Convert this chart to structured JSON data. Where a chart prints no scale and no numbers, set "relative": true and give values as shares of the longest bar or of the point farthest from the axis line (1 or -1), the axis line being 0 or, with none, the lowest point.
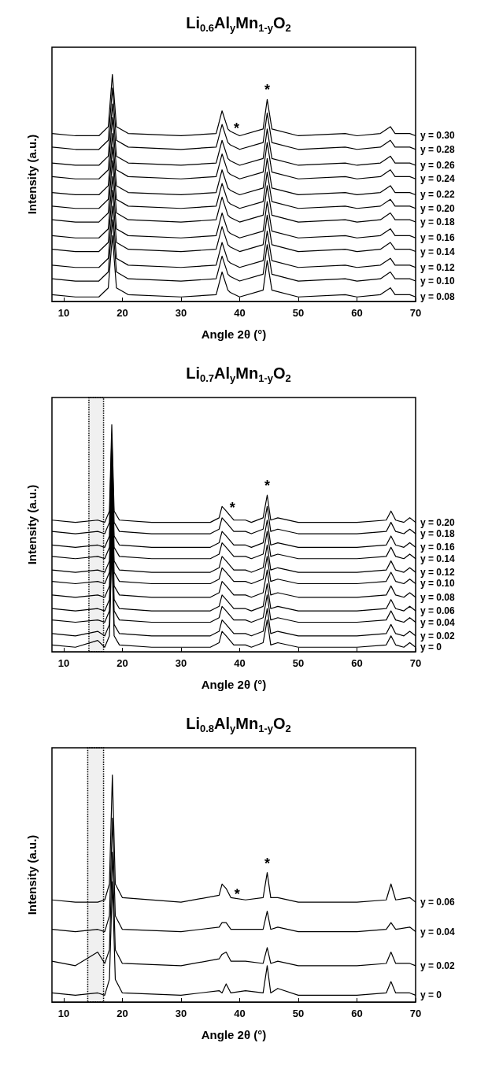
{
  "chart_data": [
    {
      "type": "line",
      "title": "Li$_{0.6}$Al$_{y}$Mn$_{1-y}$O$_{2}$",
      "xlabel": "Angle 2θ (°)",
      "ylabel": "Intensity (a.u.)",
      "relative": true,
      "marker": "none",
      "xlim": [
        8,
        70
      ],
      "xticks": [
        10,
        20,
        30,
        40,
        50,
        60,
        70
      ],
      "x": [
        8,
        12,
        16,
        17.6,
        18.3,
        19,
        21,
        30,
        36,
        37,
        38,
        38.4,
        40,
        44,
        44.7,
        45.5,
        50,
        58,
        60,
        64,
        65.7,
        66.5,
        69,
        70
      ],
      "annotations": [
        {
          "text": "*",
          "x": 44.7,
          "y": 0.89
        },
        {
          "text": "*",
          "x": 38.4,
          "y": 0.75
        }
      ],
      "series": [
        {
          "name": "y = 0.08",
          "color": "#000000",
          "values": [
            0.03,
            0.02,
            0.02,
            0.06,
            0.29,
            0.06,
            0.03,
            0.02,
            0.03,
            0.13,
            0.05,
            0.04,
            0.02,
            0.05,
            0.18,
            0.05,
            0.02,
            0.03,
            0.02,
            0.03,
            0.06,
            0.03,
            0.03,
            0.02
          ]
        },
        {
          "name": "y = 0.10",
          "color": "#000000",
          "values": [
            0.1,
            0.09,
            0.09,
            0.13,
            0.36,
            0.13,
            0.1,
            0.09,
            0.1,
            0.2,
            0.12,
            0.11,
            0.09,
            0.12,
            0.25,
            0.12,
            0.09,
            0.1,
            0.09,
            0.1,
            0.13,
            0.1,
            0.1,
            0.09
          ]
        },
        {
          "name": "y = 0.12",
          "color": "#000000",
          "values": [
            0.16,
            0.15,
            0.15,
            0.19,
            0.42,
            0.19,
            0.16,
            0.15,
            0.16,
            0.26,
            0.18,
            0.17,
            0.15,
            0.18,
            0.31,
            0.18,
            0.15,
            0.16,
            0.15,
            0.16,
            0.19,
            0.16,
            0.16,
            0.15
          ]
        },
        {
          "name": "y = 0.14",
          "color": "#000000",
          "values": [
            0.23,
            0.22,
            0.22,
            0.26,
            0.49,
            0.26,
            0.23,
            0.22,
            0.23,
            0.33,
            0.25,
            0.24,
            0.22,
            0.25,
            0.38,
            0.25,
            0.22,
            0.23,
            0.22,
            0.23,
            0.26,
            0.23,
            0.23,
            0.22
          ]
        },
        {
          "name": "y = 0.16",
          "color": "#000000",
          "values": [
            0.29,
            0.28,
            0.28,
            0.32,
            0.55,
            0.32,
            0.29,
            0.28,
            0.29,
            0.39,
            0.31,
            0.3,
            0.28,
            0.31,
            0.44,
            0.31,
            0.28,
            0.29,
            0.28,
            0.29,
            0.32,
            0.29,
            0.29,
            0.28
          ]
        },
        {
          "name": "y = 0.18",
          "color": "#000000",
          "values": [
            0.36,
            0.35,
            0.35,
            0.39,
            0.62,
            0.39,
            0.36,
            0.35,
            0.36,
            0.46,
            0.38,
            0.37,
            0.35,
            0.38,
            0.51,
            0.38,
            0.35,
            0.36,
            0.35,
            0.36,
            0.39,
            0.36,
            0.36,
            0.35
          ]
        },
        {
          "name": "y = 0.20",
          "color": "#000000",
          "values": [
            0.42,
            0.41,
            0.41,
            0.45,
            0.68,
            0.45,
            0.42,
            0.41,
            0.42,
            0.52,
            0.44,
            0.43,
            0.41,
            0.44,
            0.57,
            0.44,
            0.41,
            0.42,
            0.41,
            0.42,
            0.45,
            0.42,
            0.42,
            0.41
          ]
        },
        {
          "name": "y = 0.22",
          "color": "#000000",
          "values": [
            0.48,
            0.47,
            0.47,
            0.51,
            0.74,
            0.51,
            0.48,
            0.47,
            0.48,
            0.58,
            0.5,
            0.49,
            0.47,
            0.5,
            0.63,
            0.5,
            0.47,
            0.48,
            0.47,
            0.48,
            0.51,
            0.48,
            0.48,
            0.47
          ]
        },
        {
          "name": "y = 0.24",
          "color": "#000000",
          "values": [
            0.55,
            0.54,
            0.54,
            0.58,
            0.81,
            0.58,
            0.55,
            0.54,
            0.55,
            0.65,
            0.57,
            0.56,
            0.54,
            0.57,
            0.7,
            0.57,
            0.54,
            0.55,
            0.54,
            0.55,
            0.58,
            0.55,
            0.55,
            0.54
          ]
        },
        {
          "name": "y = 0.26",
          "color": "#000000",
          "values": [
            0.61,
            0.6,
            0.6,
            0.64,
            0.87,
            0.64,
            0.61,
            0.6,
            0.61,
            0.71,
            0.63,
            0.62,
            0.6,
            0.63,
            0.76,
            0.63,
            0.6,
            0.61,
            0.6,
            0.61,
            0.64,
            0.61,
            0.61,
            0.6
          ]
        },
        {
          "name": "y = 0.28",
          "color": "#000000",
          "values": [
            0.68,
            0.67,
            0.67,
            0.71,
            0.94,
            0.71,
            0.68,
            0.67,
            0.68,
            0.78,
            0.7,
            0.69,
            0.67,
            0.7,
            0.83,
            0.7,
            0.67,
            0.68,
            0.67,
            0.68,
            0.71,
            0.68,
            0.68,
            0.67
          ]
        },
        {
          "name": "y = 0.30",
          "color": "#000000",
          "values": [
            0.74,
            0.73,
            0.73,
            0.77,
            1,
            0.77,
            0.74,
            0.73,
            0.74,
            0.84,
            0.76,
            0.75,
            0.73,
            0.76,
            0.89,
            0.76,
            0.73,
            0.74,
            0.73,
            0.74,
            0.77,
            0.74,
            0.74,
            0.73
          ]
        }
      ]
    },
    {
      "type": "line",
      "title": "Li$_{0.7}$Al$_{y}$Mn$_{1-y}$O$_{2}$",
      "xlabel": "Angle 2θ (°)",
      "ylabel": "Intensity (a.u.)",
      "relative": true,
      "marker": "none",
      "xlim": [
        8,
        70
      ],
      "xticks": [
        10,
        20,
        30,
        40,
        50,
        60,
        70
      ],
      "x": [
        8,
        12,
        15.8,
        17,
        17.8,
        18.2,
        18.6,
        19.5,
        25,
        35,
        36.5,
        37,
        37.7,
        39,
        41,
        42,
        44,
        44.7,
        45.3,
        46.5,
        50,
        60,
        65,
        65.8,
        66.6,
        68,
        69,
        70
      ],
      "annotations": [
        {
          "text": "*",
          "x": 44.7,
          "y": 0.69
        },
        {
          "text": "*",
          "x": 37.7,
          "y": 0.62
        }
      ],
      "bands": [
        {
          "axis": "x",
          "from": 14.3,
          "to": 16.8
        }
      ],
      "series": [
        {
          "name": "y = 0",
          "color": "#000000",
          "values": [
            0.03,
            0.02,
            0.05,
            0.02,
            0.07,
            0.45,
            0.07,
            0.03,
            0.02,
            0.02,
            0.04,
            0.09,
            0.07,
            0.03,
            0.03,
            0.02,
            0.04,
            0.14,
            0.03,
            0.04,
            0.02,
            0.02,
            0.03,
            0.07,
            0.03,
            0.02,
            0.04,
            0.02
          ]
        },
        {
          "name": "y = 0.02",
          "color": "#000000",
          "values": [
            0.08,
            0.07,
            0.09,
            0.07,
            0.12,
            0.5,
            0.12,
            0.08,
            0.07,
            0.07,
            0.09,
            0.14,
            0.12,
            0.08,
            0.08,
            0.07,
            0.09,
            0.19,
            0.08,
            0.09,
            0.07,
            0.07,
            0.08,
            0.12,
            0.08,
            0.07,
            0.09,
            0.07
          ]
        },
        {
          "name": "y = 0.04",
          "color": "#000000",
          "values": [
            0.14,
            0.13,
            0.14,
            0.13,
            0.18,
            0.56,
            0.18,
            0.14,
            0.13,
            0.13,
            0.15,
            0.2,
            0.18,
            0.14,
            0.14,
            0.13,
            0.15,
            0.25,
            0.14,
            0.15,
            0.13,
            0.13,
            0.14,
            0.18,
            0.14,
            0.13,
            0.15,
            0.13
          ]
        },
        {
          "name": "y = 0.06",
          "color": "#000000",
          "values": [
            0.19,
            0.18,
            0.19,
            0.18,
            0.23,
            0.61,
            0.23,
            0.19,
            0.18,
            0.18,
            0.2,
            0.25,
            0.23,
            0.19,
            0.19,
            0.18,
            0.2,
            0.3,
            0.19,
            0.2,
            0.18,
            0.18,
            0.19,
            0.23,
            0.19,
            0.18,
            0.2,
            0.18
          ]
        },
        {
          "name": "y = 0.08",
          "color": "#000000",
          "values": [
            0.25,
            0.24,
            0.25,
            0.24,
            0.29,
            0.67,
            0.29,
            0.25,
            0.24,
            0.24,
            0.26,
            0.31,
            0.29,
            0.25,
            0.25,
            0.24,
            0.26,
            0.36,
            0.25,
            0.26,
            0.24,
            0.24,
            0.25,
            0.29,
            0.25,
            0.24,
            0.26,
            0.24
          ]
        },
        {
          "name": "y = 0.10",
          "color": "#000000",
          "values": [
            0.31,
            0.3,
            0.31,
            0.3,
            0.35,
            0.73,
            0.35,
            0.31,
            0.3,
            0.3,
            0.32,
            0.37,
            0.35,
            0.31,
            0.31,
            0.3,
            0.32,
            0.42,
            0.31,
            0.32,
            0.3,
            0.3,
            0.31,
            0.35,
            0.31,
            0.3,
            0.32,
            0.3
          ]
        },
        {
          "name": "y = 0.12",
          "color": "#000000",
          "values": [
            0.36,
            0.35,
            0.36,
            0.35,
            0.4,
            0.78,
            0.4,
            0.36,
            0.35,
            0.35,
            0.37,
            0.42,
            0.4,
            0.36,
            0.36,
            0.35,
            0.37,
            0.47,
            0.36,
            0.37,
            0.35,
            0.35,
            0.36,
            0.4,
            0.36,
            0.35,
            0.37,
            0.35
          ]
        },
        {
          "name": "y = 0.14",
          "color": "#000000",
          "values": [
            0.42,
            0.41,
            0.42,
            0.41,
            0.46,
            0.84,
            0.46,
            0.42,
            0.41,
            0.41,
            0.43,
            0.48,
            0.46,
            0.42,
            0.42,
            0.41,
            0.43,
            0.53,
            0.42,
            0.43,
            0.41,
            0.41,
            0.42,
            0.46,
            0.42,
            0.41,
            0.43,
            0.41
          ]
        },
        {
          "name": "y = 0.16",
          "color": "#000000",
          "values": [
            0.47,
            0.46,
            0.47,
            0.46,
            0.51,
            0.89,
            0.51,
            0.47,
            0.46,
            0.46,
            0.48,
            0.53,
            0.51,
            0.47,
            0.47,
            0.46,
            0.48,
            0.58,
            0.47,
            0.48,
            0.46,
            0.46,
            0.47,
            0.51,
            0.47,
            0.46,
            0.48,
            0.46
          ]
        },
        {
          "name": "y = 0.18",
          "color": "#000000",
          "values": [
            0.53,
            0.52,
            0.53,
            0.52,
            0.57,
            0.95,
            0.57,
            0.53,
            0.52,
            0.52,
            0.54,
            0.59,
            0.57,
            0.53,
            0.53,
            0.52,
            0.54,
            0.64,
            0.53,
            0.54,
            0.52,
            0.52,
            0.53,
            0.57,
            0.53,
            0.52,
            0.54,
            0.52
          ]
        },
        {
          "name": "y = 0.20",
          "color": "#000000",
          "values": [
            0.58,
            0.57,
            0.58,
            0.57,
            0.62,
            1,
            0.62,
            0.58,
            0.57,
            0.57,
            0.59,
            0.64,
            0.62,
            0.58,
            0.58,
            0.57,
            0.59,
            0.69,
            0.58,
            0.59,
            0.57,
            0.57,
            0.58,
            0.62,
            0.58,
            0.57,
            0.59,
            0.57
          ]
        }
      ]
    },
    {
      "type": "line",
      "title": "Li$_{0.8}$Al$_{y}$Mn$_{1-y}$O$_{2}$",
      "xlabel": "Angle 2θ (°)",
      "ylabel": "Intensity (a.u.)",
      "relative": true,
      "marker": "none",
      "xlim": [
        8,
        70
      ],
      "xticks": [
        10,
        20,
        30,
        40,
        50,
        60,
        70
      ],
      "x": [
        8,
        12,
        15.8,
        17,
        17.8,
        18.3,
        18.8,
        20,
        30,
        36.5,
        37,
        37.7,
        38.5,
        41,
        44,
        44.7,
        45.3,
        46.5,
        50,
        60,
        65,
        65.8,
        66.6,
        69,
        70
      ],
      "annotations": [
        {
          "text": "*",
          "x": 44.7,
          "y": 0.57
        },
        {
          "text": "*",
          "x": 38.5,
          "y": 0.46
        }
      ],
      "bands": [
        {
          "axis": "x",
          "from": 14.1,
          "to": 16.8
        }
      ],
      "series": [
        {
          "name": "y = 0",
          "color": "#000000",
          "values": [
            0.04,
            0.03,
            0.04,
            0.03,
            0.1,
            0.53,
            0.1,
            0.04,
            0.03,
            0.05,
            0.04,
            0.08,
            0.04,
            0.05,
            0.04,
            0.16,
            0.04,
            0.06,
            0.03,
            0.03,
            0.04,
            0.09,
            0.04,
            0.04,
            0.03
          ]
        },
        {
          "name": "y = 0.02",
          "color": "#000000",
          "values": [
            0.18,
            0.16,
            0.22,
            0.17,
            0.23,
            0.66,
            0.23,
            0.17,
            0.16,
            0.19,
            0.21,
            0.22,
            0.18,
            0.18,
            0.17,
            0.24,
            0.17,
            0.18,
            0.16,
            0.16,
            0.17,
            0.22,
            0.17,
            0.17,
            0.16
          ]
        },
        {
          "name": "y = 0.04",
          "color": "#000000",
          "values": [
            0.32,
            0.31,
            0.32,
            0.31,
            0.38,
            0.81,
            0.38,
            0.32,
            0.31,
            0.33,
            0.35,
            0.35,
            0.32,
            0.32,
            0.32,
            0.4,
            0.32,
            0.33,
            0.31,
            0.31,
            0.32,
            0.35,
            0.32,
            0.33,
            0.31
          ]
        },
        {
          "name": "y = 0.06",
          "color": "#000000",
          "values": [
            0.45,
            0.44,
            0.44,
            0.45,
            0.52,
            1,
            0.52,
            0.46,
            0.44,
            0.47,
            0.52,
            0.5,
            0.46,
            0.45,
            0.46,
            0.57,
            0.46,
            0.46,
            0.44,
            0.44,
            0.45,
            0.52,
            0.45,
            0.46,
            0.44
          ]
        }
      ]
    }
  ]
}
